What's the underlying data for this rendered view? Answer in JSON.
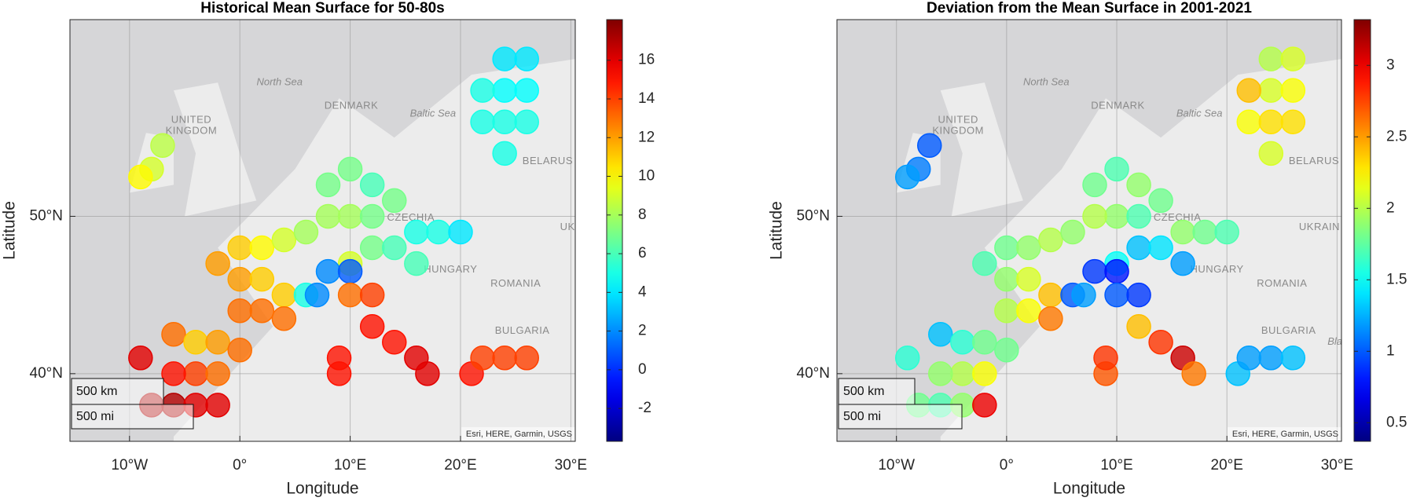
{
  "chart_data": [
    {
      "type": "scatter",
      "title": "Historical Mean Surface for 50-80s",
      "xlabel": "Longitude",
      "ylabel": "Latitude",
      "colormap": "jet",
      "xlim": [
        -15.4,
        30.4
      ],
      "ylim": [
        35.7,
        62.5
      ],
      "xticks": [
        {
          "value": -10,
          "label": "10°W"
        },
        {
          "value": 0,
          "label": "0°"
        },
        {
          "value": 10,
          "label": "10°E"
        },
        {
          "value": 20,
          "label": "20°E"
        },
        {
          "value": 30,
          "label": "30°E"
        }
      ],
      "yticks": [
        {
          "value": 40,
          "label": "40°N"
        },
        {
          "value": 50,
          "label": "50°N"
        }
      ],
      "clim": [
        -3.7,
        18.1
      ],
      "cticks": [
        -2,
        0,
        2,
        4,
        6,
        8,
        10,
        12,
        14,
        16
      ],
      "basemap_labels": [
        "North Sea",
        "DENMARK",
        "Baltic Sea",
        "UNITED",
        "KINGDOM",
        "BELARUS",
        "CZECHIA",
        "UK",
        "HUNGARY",
        "ROMANIA",
        "BULGARIA"
      ],
      "scalebar_labels": [
        "500 km",
        "500 mi"
      ],
      "attribution": "Esri, HERE, Garmin, USGS",
      "x": [
        -8,
        -7,
        -9,
        0,
        2,
        4,
        6,
        -2,
        0,
        2,
        4,
        6,
        0,
        2,
        4,
        8,
        10,
        12,
        14,
        10,
        12,
        8,
        16,
        18,
        20,
        10,
        12,
        14,
        16,
        8,
        10,
        7,
        10,
        12,
        12,
        14,
        16,
        17,
        9,
        9,
        -9,
        -8,
        -6,
        -4,
        -2,
        -4,
        -6,
        -2,
        -6,
        -4,
        -2,
        0,
        21,
        22,
        24,
        26,
        22,
        24,
        26,
        24,
        26,
        24,
        26,
        22,
        24
      ],
      "y": [
        53,
        54.5,
        52.5,
        48,
        48,
        48.5,
        49,
        47,
        46,
        46,
        45,
        45,
        44,
        44,
        43.5,
        52,
        53,
        52,
        51,
        50,
        50,
        50,
        49,
        49,
        49,
        47,
        48,
        48,
        47,
        46.5,
        46.5,
        45,
        45,
        45,
        43,
        42,
        41,
        40,
        40,
        41,
        41,
        38,
        38,
        38,
        38,
        40,
        40,
        40,
        42.5,
        42,
        42,
        41.5,
        40,
        41,
        41,
        41,
        56,
        56,
        56,
        58,
        58,
        60,
        60,
        58,
        54
      ],
      "values": [
        9,
        8.5,
        10,
        11,
        10,
        9,
        8,
        12,
        12,
        11,
        11,
        5,
        13,
        13,
        13,
        7,
        7,
        6,
        7,
        8,
        7,
        8,
        5,
        5,
        4,
        9,
        7,
        6,
        6,
        2,
        1,
        2,
        13,
        14,
        15,
        15,
        16,
        16,
        15,
        15,
        16,
        17,
        17,
        16,
        16,
        14,
        15,
        13,
        13,
        11,
        12,
        13,
        15,
        14,
        14,
        14,
        5,
        5,
        5,
        4.5,
        4.5,
        4,
        4,
        5,
        5
      ]
    },
    {
      "type": "scatter",
      "title": "Deviation from the Mean Surface in 2001-2021",
      "xlabel": "Longitude",
      "ylabel": "Latitude",
      "colormap": "jet",
      "xlim": [
        -15.4,
        30.4
      ],
      "ylim": [
        35.7,
        62.5
      ],
      "xticks": [
        {
          "value": -10,
          "label": "10°W"
        },
        {
          "value": 0,
          "label": "0°"
        },
        {
          "value": 10,
          "label": "10°E"
        },
        {
          "value": 20,
          "label": "20°E"
        },
        {
          "value": 30,
          "label": "30°E"
        }
      ],
      "yticks": [
        {
          "value": 40,
          "label": "40°N"
        },
        {
          "value": 50,
          "label": "50°N"
        }
      ],
      "clim": [
        0.37,
        3.32
      ],
      "cticks": [
        0.5,
        1,
        1.5,
        2,
        2.5,
        3
      ],
      "basemap_labels": [
        "North Sea",
        "DENMARK",
        "Baltic Sea",
        "UNITED",
        "KINGDOM",
        "BELARUS",
        "CZECHIA",
        "UKRAIN",
        "HUNGARY",
        "ROMANIA",
        "BULGARIA",
        "Bla"
      ],
      "scalebar_labels": [
        "500 km",
        "500 mi"
      ],
      "attribution": "Esri, HERE, Garmin, USGS",
      "x": [
        -8,
        -7,
        -9,
        0,
        2,
        4,
        6,
        -2,
        0,
        2,
        4,
        6,
        0,
        2,
        4,
        8,
        10,
        12,
        14,
        10,
        12,
        8,
        16,
        18,
        20,
        10,
        12,
        14,
        16,
        8,
        10,
        7,
        10,
        12,
        12,
        14,
        16,
        17,
        9,
        9,
        -9,
        -8,
        -6,
        -4,
        -2,
        -4,
        -6,
        -2,
        -6,
        -4,
        -2,
        0,
        21,
        22,
        24,
        26,
        22,
        24,
        26,
        24,
        26,
        24,
        26,
        22,
        24
      ],
      "y": [
        53,
        54.5,
        52.5,
        48,
        48,
        48.5,
        49,
        47,
        46,
        46,
        45,
        45,
        44,
        44,
        43.5,
        52,
        53,
        52,
        51,
        50,
        50,
        50,
        49,
        49,
        49,
        47,
        48,
        48,
        47,
        46.5,
        46.5,
        45,
        45,
        45,
        43,
        42,
        41,
        40,
        40,
        41,
        41,
        38,
        38,
        38,
        38,
        40,
        40,
        40,
        42.5,
        42,
        42,
        41.5,
        40,
        41,
        41,
        41,
        56,
        56,
        56,
        58,
        58,
        60,
        60,
        58,
        54
      ],
      "values": [
        1.1,
        1.0,
        1.2,
        1.8,
        1.9,
        2.0,
        1.9,
        1.7,
        1.9,
        2.1,
        2.4,
        1.0,
        2.0,
        2.2,
        2.6,
        1.8,
        1.7,
        1.9,
        1.8,
        1.9,
        1.7,
        2.0,
        1.9,
        1.8,
        1.7,
        1.5,
        1.3,
        1.4,
        1.2,
        0.9,
        0.8,
        1.2,
        1.0,
        0.9,
        2.4,
        2.8,
        3.1,
        2.6,
        2.7,
        2.8,
        1.6,
        1.8,
        1.7,
        1.9,
        3.0,
        2.0,
        1.9,
        2.2,
        1.3,
        1.6,
        1.8,
        1.8,
        1.3,
        1.2,
        1.2,
        1.3,
        2.2,
        2.3,
        2.3,
        2.1,
        2.2,
        2.0,
        2.1,
        2.4,
        2.1
      ]
    }
  ]
}
